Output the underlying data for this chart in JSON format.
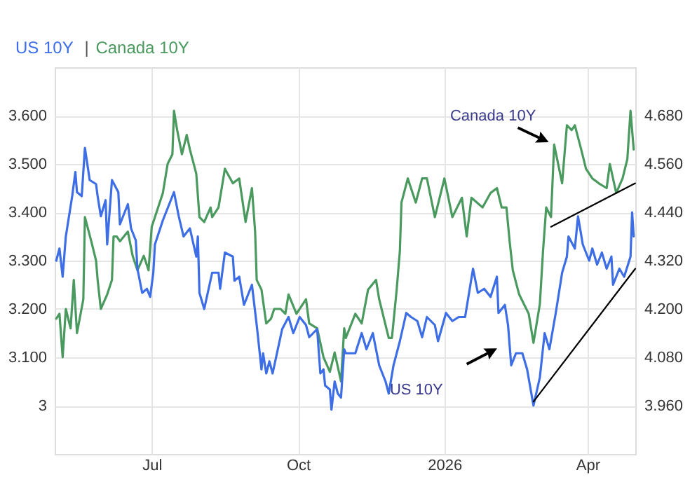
{
  "chart_data": {
    "type": "line",
    "legend": "top left",
    "grid": true,
    "marker": "none",
    "xlim": [
      "2025-05-01",
      "2026-05-01"
    ],
    "xticks": [
      {
        "value": "2025-07-01",
        "label": "Jul"
      },
      {
        "value": "2025-10-01",
        "label": "Oct"
      },
      {
        "value": "2026-01-01",
        "label": "2026"
      },
      {
        "value": "2026-04-01",
        "label": "Apr"
      }
    ],
    "ylim": [
      2.9,
      3.7
    ],
    "yticks": [
      3,
      {
        "value": 3.1,
        "label": "3.100"
      },
      {
        "value": 3.2,
        "label": "3.200"
      },
      {
        "value": 3.3,
        "label": "3.300"
      },
      {
        "value": 3.4,
        "label": "3.400"
      },
      {
        "value": 3.5,
        "label": "3.500"
      },
      {
        "value": 3.6,
        "label": "3.600"
      }
    ],
    "y2lim": [
      3.84,
      4.8
    ],
    "y2ticks": [
      {
        "value": 3.96,
        "label": "3.960"
      },
      {
        "value": 4.08,
        "label": "4.080"
      },
      {
        "value": 4.2,
        "label": "4.200"
      },
      {
        "value": 4.32,
        "label": "4.320"
      },
      {
        "value": 4.44,
        "label": "4.440"
      },
      {
        "value": 4.56,
        "label": "4.560"
      },
      {
        "value": 4.68,
        "label": "4.680"
      }
    ],
    "annotations": [
      "Canada 10Y",
      "US 10Y",
      "|"
    ],
    "series": [
      {
        "name": "US 10Y",
        "color": "#3d6ee6",
        "axis": "y2",
        "x": [
          "2025-05-02",
          "2025-05-04",
          "2025-05-06",
          "2025-05-08",
          "2025-05-12",
          "2025-05-14",
          "2025-05-15",
          "2025-05-18",
          "2025-05-20",
          "2025-05-23",
          "2025-05-27",
          "2025-05-28",
          "2025-05-30",
          "2025-06-02",
          "2025-06-03",
          "2025-06-06",
          "2025-06-10",
          "2025-06-11",
          "2025-06-16",
          "2025-06-18",
          "2025-06-21",
          "2025-06-22",
          "2025-06-25",
          "2025-06-28",
          "2025-06-30",
          "2025-07-02",
          "2025-07-03",
          "2025-07-08",
          "2025-07-15",
          "2025-07-18",
          "2025-07-21",
          "2025-07-25",
          "2025-07-29",
          "2025-07-30",
          "2025-07-31",
          "2025-08-03",
          "2025-08-08",
          "2025-08-12",
          "2025-08-13",
          "2025-08-16",
          "2025-08-21",
          "2025-08-22",
          "2025-08-25",
          "2025-08-28",
          "2025-09-02",
          "2025-09-05",
          "2025-09-08",
          "2025-09-09",
          "2025-09-11",
          "2025-09-13",
          "2025-09-15",
          "2025-09-21",
          "2025-09-25",
          "2025-09-28",
          "2025-10-02",
          "2025-10-06",
          "2025-10-08",
          "2025-10-13",
          "2025-10-15",
          "2025-10-17",
          "2025-10-18",
          "2025-10-21",
          "2025-10-22",
          "2025-10-24",
          "2025-10-26",
          "2025-10-28",
          "2025-10-30",
          "2025-10-31",
          "2025-11-06",
          "2025-11-10",
          "2025-11-13",
          "2025-11-17",
          "2025-11-21",
          "2025-11-25",
          "2025-11-27",
          "2025-11-30",
          "2025-12-04",
          "2025-12-08",
          "2025-12-11",
          "2025-12-15",
          "2025-12-18",
          "2025-12-21",
          "2025-12-26",
          "2025-12-28",
          "2026-01-02",
          "2026-01-06",
          "2026-01-10",
          "2026-01-14",
          "2026-01-19",
          "2026-01-22",
          "2026-01-26",
          "2026-01-30",
          "2026-02-03",
          "2026-02-04",
          "2026-02-08",
          "2026-02-10",
          "2026-02-12",
          "2026-02-15",
          "2026-02-19",
          "2026-02-22",
          "2026-02-26",
          "2026-03-02",
          "2026-03-05",
          "2026-03-08",
          "2026-03-12",
          "2026-03-16",
          "2026-03-19",
          "2026-03-20",
          "2026-03-24",
          "2026-03-26",
          "2026-03-29",
          "2026-04-02",
          "2026-04-04",
          "2026-04-07",
          "2026-04-10",
          "2026-04-13",
          "2026-04-16",
          "2026-04-17",
          "2026-04-21",
          "2026-04-24",
          "2026-04-28",
          "2026-04-29",
          "2026-04-30"
        ],
        "values": [
          4.32,
          4.35,
          4.28,
          4.38,
          4.48,
          4.54,
          4.49,
          4.48,
          4.6,
          4.52,
          4.51,
          4.48,
          4.43,
          4.47,
          4.36,
          4.52,
          4.49,
          4.41,
          4.46,
          4.4,
          4.37,
          4.3,
          4.24,
          4.25,
          4.23,
          4.29,
          4.36,
          4.42,
          4.49,
          4.43,
          4.38,
          4.4,
          4.33,
          4.38,
          4.24,
          4.2,
          4.29,
          4.29,
          4.25,
          4.34,
          4.33,
          4.27,
          4.28,
          4.21,
          4.26,
          4.16,
          4.05,
          4.09,
          4.04,
          4.07,
          4.04,
          4.15,
          4.18,
          4.14,
          4.18,
          4.16,
          4.13,
          4.15,
          4.04,
          4.05,
          4.01,
          4.0,
          3.95,
          4.02,
          3.99,
          3.98,
          4.1,
          4.09,
          4.09,
          4.14,
          4.1,
          4.14,
          4.06,
          4.02,
          3.99,
          4.06,
          4.12,
          4.19,
          4.18,
          4.17,
          4.13,
          4.18,
          4.16,
          4.12,
          4.19,
          4.17,
          4.18,
          4.18,
          4.3,
          4.24,
          4.25,
          4.23,
          4.28,
          4.19,
          4.21,
          4.16,
          4.06,
          4.09,
          4.09,
          4.05,
          3.96,
          4.03,
          4.14,
          4.1,
          4.19,
          4.29,
          4.33,
          4.38,
          4.35,
          4.43,
          4.36,
          4.32,
          4.35,
          4.31,
          4.34,
          4.3,
          4.33,
          4.26,
          4.3,
          4.28,
          4.33,
          4.44,
          4.38
        ]
      },
      {
        "name": "Canada 10Y",
        "color": "#4a9a5f",
        "x": [
          "2025-05-02",
          "2025-05-04",
          "2025-05-06",
          "2025-05-08",
          "2025-05-11",
          "2025-05-13",
          "2025-05-15",
          "2025-05-19",
          "2025-05-20",
          "2025-05-24",
          "2025-05-27",
          "2025-05-28",
          "2025-05-30",
          "2025-06-03",
          "2025-06-06",
          "2025-06-07",
          "2025-06-09",
          "2025-06-11",
          "2025-06-16",
          "2025-06-19",
          "2025-06-22",
          "2025-06-26",
          "2025-06-29",
          "2025-07-01",
          "2025-07-03",
          "2025-07-08",
          "2025-07-11",
          "2025-07-14",
          "2025-07-15",
          "2025-07-17",
          "2025-07-20",
          "2025-07-23",
          "2025-07-25",
          "2025-07-29",
          "2025-07-31",
          "2025-08-03",
          "2025-08-07",
          "2025-08-08",
          "2025-08-12",
          "2025-08-16",
          "2025-08-21",
          "2025-08-25",
          "2025-08-29",
          "2025-09-02",
          "2025-09-04",
          "2025-09-05",
          "2025-09-08",
          "2025-09-11",
          "2025-09-14",
          "2025-09-16",
          "2025-09-20",
          "2025-09-23",
          "2025-09-25",
          "2025-09-30",
          "2025-10-06",
          "2025-10-08",
          "2025-10-13",
          "2025-10-17",
          "2025-10-21",
          "2025-10-24",
          "2025-10-28",
          "2025-10-30",
          "2025-10-31",
          "2025-11-06",
          "2025-11-10",
          "2025-11-14",
          "2025-11-19",
          "2025-11-21",
          "2025-11-27",
          "2025-11-29",
          "2025-12-02",
          "2025-12-04",
          "2025-12-05",
          "2025-12-09",
          "2025-12-14",
          "2025-12-18",
          "2025-12-21",
          "2025-12-26",
          "2026-01-01",
          "2026-01-06",
          "2026-01-12",
          "2026-01-15",
          "2026-01-18",
          "2026-01-25",
          "2026-01-30",
          "2026-02-03",
          "2026-02-06",
          "2026-02-09",
          "2026-02-11",
          "2026-02-13",
          "2026-02-17",
          "2026-02-23",
          "2026-02-26",
          "2026-03-02",
          "2026-03-04",
          "2026-03-06",
          "2026-03-09",
          "2026-03-11",
          "2026-03-16",
          "2026-03-19",
          "2026-03-22",
          "2026-03-24",
          "2026-03-28",
          "2026-03-31",
          "2026-04-04",
          "2026-04-08",
          "2026-04-13",
          "2026-04-15",
          "2026-04-19",
          "2026-04-23",
          "2026-04-26",
          "2026-04-28",
          "2026-04-30"
        ],
        "values": [
          3.18,
          3.19,
          3.1,
          3.2,
          3.16,
          3.26,
          3.15,
          3.22,
          3.39,
          3.34,
          3.3,
          3.26,
          3.2,
          3.23,
          3.26,
          3.35,
          3.35,
          3.34,
          3.36,
          3.31,
          3.28,
          3.31,
          3.28,
          3.37,
          3.39,
          3.44,
          3.5,
          3.52,
          3.61,
          3.57,
          3.52,
          3.56,
          3.53,
          3.48,
          3.39,
          3.38,
          3.41,
          3.39,
          3.41,
          3.49,
          3.46,
          3.47,
          3.38,
          3.45,
          3.36,
          3.26,
          3.24,
          3.17,
          3.18,
          3.2,
          3.2,
          3.19,
          3.23,
          3.19,
          3.22,
          3.17,
          3.16,
          3.1,
          3.07,
          3.11,
          3.05,
          3.16,
          3.14,
          3.19,
          3.17,
          3.24,
          3.26,
          3.22,
          3.14,
          3.14,
          3.24,
          3.32,
          3.42,
          3.47,
          3.42,
          3.47,
          3.47,
          3.39,
          3.47,
          3.39,
          3.43,
          3.35,
          3.43,
          3.41,
          3.44,
          3.45,
          3.41,
          3.41,
          3.34,
          3.28,
          3.23,
          3.19,
          3.13,
          3.21,
          3.32,
          3.41,
          3.39,
          3.54,
          3.46,
          3.58,
          3.57,
          3.58,
          3.53,
          3.49,
          3.47,
          3.46,
          3.45,
          3.5,
          3.44,
          3.47,
          3.51,
          3.61,
          3.53
        ]
      },
      {
        "type": "line",
        "color": "#000000",
        "x": [
          "2026-03-09",
          "2026-05-01"
        ],
        "values": [
          3.37,
          3.46
        ]
      },
      {
        "type": "line",
        "color": "#000000",
        "axis": "y2",
        "x": [
          "2026-02-26",
          "2026-05-01"
        ],
        "values": [
          3.97,
          4.3
        ]
      }
    ]
  }
}
